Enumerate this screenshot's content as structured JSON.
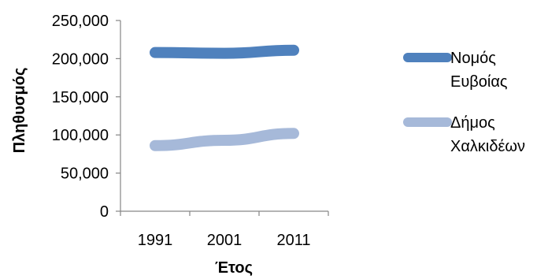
{
  "chart_data": {
    "type": "line",
    "title": "",
    "xlabel": "Έτος",
    "ylabel": "Πληθυσμός",
    "categories": [
      "1991",
      "2001",
      "2011"
    ],
    "ylim": [
      0,
      250000
    ],
    "y_ticks": [
      0,
      50000,
      100000,
      150000,
      200000,
      250000
    ],
    "y_tick_labels": [
      "0",
      "50,000",
      "100,000",
      "150,000",
      "200,000",
      "250,000"
    ],
    "grid": false,
    "legend_position": "right",
    "series": [
      {
        "name_lines": [
          "Νομός",
          "Ευβοίας"
        ],
        "values": [
          208000,
          207000,
          211000
        ],
        "color": "#4f81bd"
      },
      {
        "name_lines": [
          "Δήμος",
          "Χαλκιδέων"
        ],
        "values": [
          86000,
          93000,
          102000
        ],
        "color": "#a6b9d9"
      }
    ]
  }
}
